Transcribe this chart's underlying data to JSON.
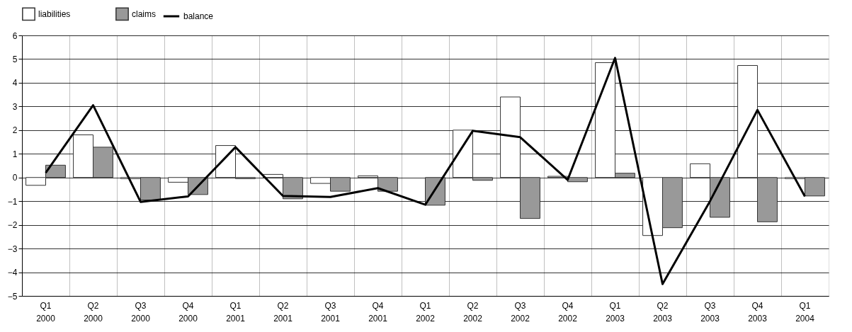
{
  "chart_data": {
    "type": "bar",
    "categories": [
      "Q1 2000",
      "Q2 2000",
      "Q3 2000",
      "Q4 2000",
      "Q1 2001",
      "Q2 2001",
      "Q3 2001",
      "Q4 2001",
      "Q1 2002",
      "Q2 2002",
      "Q3 2002",
      "Q4 2002",
      "Q1 2003",
      "Q2 2003",
      "Q3 2003",
      "Q4 2003",
      "Q1 2004"
    ],
    "series": [
      {
        "name": "liabilities",
        "color": "#ffffff",
        "values": [
          -0.33,
          1.8,
          -0.05,
          -0.2,
          1.35,
          0.13,
          -0.25,
          0.07,
          null,
          2.0,
          3.4,
          0.05,
          4.85,
          -2.45,
          0.58,
          4.73,
          -0.05
        ]
      },
      {
        "name": "claims",
        "color": "#999999",
        "values": [
          0.52,
          1.28,
          -0.95,
          -0.72,
          -0.05,
          -0.9,
          -0.58,
          -0.58,
          -1.17,
          -0.12,
          -1.73,
          -0.18,
          0.18,
          -2.12,
          -1.68,
          -1.87,
          -0.78
        ]
      },
      {
        "name": "balance",
        "type": "line",
        "color": "#000000",
        "values": [
          0.2,
          3.05,
          -1.03,
          -0.8,
          1.28,
          -0.78,
          -0.82,
          -0.45,
          -1.15,
          1.97,
          1.7,
          -0.1,
          5.05,
          -4.5,
          -1.0,
          2.85,
          -0.8
        ]
      }
    ],
    "ylim": [
      -5,
      6
    ],
    "yticks": [
      -5,
      -4,
      -3,
      -2,
      -1,
      0,
      1,
      2,
      3,
      4,
      5,
      6
    ],
    "grid": true,
    "legend": "top",
    "marker": "none",
    "line_style": "solid"
  }
}
